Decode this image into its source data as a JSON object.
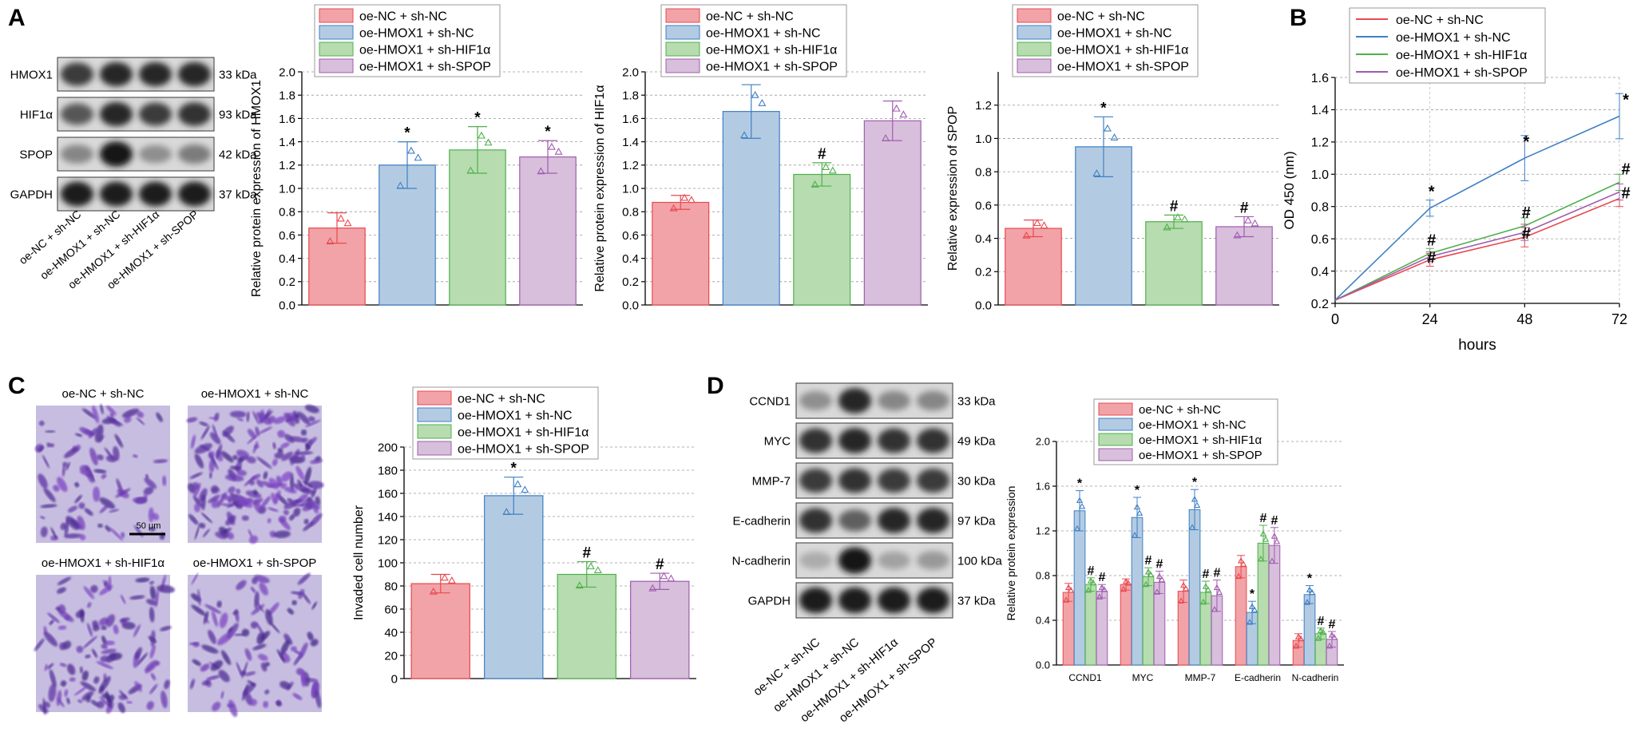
{
  "panel_letters": [
    "A",
    "B",
    "C",
    "D"
  ],
  "groups": [
    "oe-NC + sh-NC",
    "oe-HMOX1 + sh-NC",
    "oe-HMOX1 + sh-HIF1α",
    "oe-HMOX1 + sh-SPOP"
  ],
  "colors": {
    "fill": [
      "#f2a3a7",
      "#b3cbe2",
      "#b7dcb0",
      "#d8bfdc"
    ],
    "stroke": [
      "#e8494f",
      "#3e7fc4",
      "#4fb04b",
      "#a05cae"
    ]
  },
  "blot_a": {
    "rows": [
      {
        "label": "HMOX1",
        "kda": "33 kDa"
      },
      {
        "label": "HIF1α",
        "kda": "93 kDa"
      },
      {
        "label": "SPOP",
        "kda": "42 kDa"
      },
      {
        "label": "GAPDH",
        "kda": "37 kDa"
      }
    ]
  },
  "blot_d": {
    "rows": [
      {
        "label": "CCND1",
        "kda": "33 kDa"
      },
      {
        "label": "MYC",
        "kda": "49 kDa"
      },
      {
        "label": "MMP-7",
        "kda": "30 kDa"
      },
      {
        "label": "E-cadherin",
        "kda": "97 kDa"
      },
      {
        "label": "N-cadherin",
        "kda": "100 kDa"
      },
      {
        "label": "GAPDH",
        "kda": "37 kDa"
      }
    ]
  },
  "micrographs": {
    "labels": [
      "oe-NC + sh-NC",
      "oe-HMOX1 + sh-NC",
      "oe-HMOX1 + sh-HIF1α",
      "oe-HMOX1 + sh-SPOP"
    ],
    "scale_bar": "50 μm"
  },
  "chart_data": [
    {
      "id": "hmox1",
      "type": "bar",
      "categories": [
        "oe-NC + sh-NC",
        "oe-HMOX1 + sh-NC",
        "oe-HMOX1 + sh-HIF1α",
        "oe-HMOX1 + sh-SPOP"
      ],
      "values": [
        0.66,
        1.2,
        1.33,
        1.27
      ],
      "errors": [
        0.13,
        0.2,
        0.2,
        0.14
      ],
      "marks": [
        "",
        "*",
        "*",
        "*"
      ],
      "ylabel": "Relative protein expression of HMOX1",
      "ylim": [
        0,
        2.0
      ],
      "yticks": [
        "0.0",
        "0.2",
        "0.4",
        "0.6",
        "0.8",
        "1.0",
        "1.2",
        "1.4",
        "1.6",
        "1.8",
        "2.0"
      ],
      "legend": "top",
      "grid": true
    },
    {
      "id": "hif1a",
      "type": "bar",
      "categories": [
        "oe-NC + sh-NC",
        "oe-HMOX1 + sh-NC",
        "oe-HMOX1 + sh-HIF1α",
        "oe-HMOX1 + sh-SPOP"
      ],
      "values": [
        0.88,
        1.66,
        1.12,
        1.58
      ],
      "errors": [
        0.06,
        0.23,
        0.1,
        0.17
      ],
      "marks": [
        "",
        "*",
        "#",
        ""
      ],
      "ylabel": "Relative protein expression of HIF1α",
      "ylim": [
        0,
        2.0
      ],
      "yticks": [
        "0.0",
        "0.2",
        "0.4",
        "0.6",
        "0.8",
        "1.0",
        "1.2",
        "1.4",
        "1.6",
        "1.8",
        "2.0"
      ],
      "legend": "top",
      "grid": true
    },
    {
      "id": "spop",
      "type": "bar",
      "categories": [
        "oe-NC + sh-NC",
        "oe-HMOX1 + sh-NC",
        "oe-HMOX1 + sh-HIF1α",
        "oe-HMOX1 + sh-SPOP"
      ],
      "values": [
        0.46,
        0.95,
        0.5,
        0.47
      ],
      "errors": [
        0.05,
        0.18,
        0.04,
        0.06
      ],
      "marks": [
        "",
        "*",
        "#",
        "#"
      ],
      "ylabel": "Relative expression of SPOP",
      "ylim": [
        0,
        1.4
      ],
      "yticks": [
        "0.0",
        "0.2",
        "0.4",
        "0.6",
        "0.8",
        "1.0",
        "1.2"
      ],
      "legend": "top",
      "grid": true
    },
    {
      "id": "od450",
      "type": "line",
      "x": [
        0,
        24,
        48,
        72
      ],
      "xticks": [
        "0",
        "24",
        "48",
        "72"
      ],
      "series": [
        {
          "name": "oe-NC + sh-NC",
          "values": [
            0.22,
            0.47,
            0.61,
            0.85
          ],
          "errors": [
            0,
            0.04,
            0.06,
            0.05
          ],
          "marks": [
            "",
            "",
            "",
            ""
          ]
        },
        {
          "name": "oe-HMOX1 + sh-NC",
          "values": [
            0.22,
            0.79,
            1.1,
            1.36
          ],
          "errors": [
            0,
            0.05,
            0.14,
            0.14
          ],
          "marks": [
            "",
            "*",
            "*",
            "*"
          ]
        },
        {
          "name": "oe-HMOX1 + sh-HIF1α",
          "values": [
            0.22,
            0.51,
            0.68,
            0.95
          ],
          "errors": [
            0,
            0.03,
            0.05,
            0.05
          ],
          "marks": [
            "",
            "#",
            "#",
            "#"
          ]
        },
        {
          "name": "oe-HMOX1 + sh-SPOP",
          "values": [
            0.22,
            0.49,
            0.64,
            0.89
          ],
          "errors": [
            0,
            0.03,
            0.05,
            0.05
          ],
          "marks": [
            "",
            "#",
            "#",
            "#"
          ]
        }
      ],
      "xlabel": "hours",
      "ylabel": "OD 450 (nm)",
      "ylim": [
        0.2,
        1.6
      ],
      "yticks": [
        "0.2",
        "0.4",
        "0.6",
        "0.8",
        "1.0",
        "1.2",
        "1.4",
        "1.6"
      ],
      "legend": "top-left",
      "grid": true
    },
    {
      "id": "invasion",
      "type": "bar",
      "categories": [
        "oe-NC + sh-NC",
        "oe-HMOX1 + sh-NC",
        "oe-HMOX1 + sh-HIF1α",
        "oe-HMOX1 + sh-SPOP"
      ],
      "values": [
        82,
        158,
        90,
        84
      ],
      "errors": [
        8,
        16,
        11,
        7
      ],
      "marks": [
        "",
        "*",
        "#",
        "#"
      ],
      "ylabel": "Invaded cell number",
      "ylim": [
        0,
        200
      ],
      "yticks": [
        "0",
        "20",
        "40",
        "60",
        "80",
        "100",
        "120",
        "140",
        "160",
        "180",
        "200"
      ],
      "legend": "top",
      "grid": true
    },
    {
      "id": "emt",
      "type": "bar",
      "categories": [
        "CCND1",
        "MYC",
        "MMP-7",
        "E-cadherin",
        "N-cadherin"
      ],
      "series": [
        {
          "name": "oe-NC + sh-NC",
          "values": [
            0.65,
            0.72,
            0.66,
            0.88,
            0.22
          ],
          "errors": [
            0.08,
            0.05,
            0.1,
            0.1,
            0.06
          ],
          "marks": [
            "",
            "",
            "",
            "",
            ""
          ]
        },
        {
          "name": "oe-HMOX1 + sh-NC",
          "values": [
            1.38,
            1.32,
            1.39,
            0.47,
            0.63
          ],
          "errors": [
            0.18,
            0.18,
            0.18,
            0.1,
            0.08
          ],
          "marks": [
            "*",
            "*",
            "*",
            "*",
            "*"
          ]
        },
        {
          "name": "oe-HMOX1 + sh-HIF1α",
          "values": [
            0.72,
            0.79,
            0.65,
            1.09,
            0.28
          ],
          "errors": [
            0.06,
            0.08,
            0.1,
            0.16,
            0.05
          ],
          "marks": [
            "#",
            "#",
            "#",
            "#",
            "#"
          ]
        },
        {
          "name": "oe-HMOX1 + sh-SPOP",
          "values": [
            0.66,
            0.74,
            0.62,
            1.07,
            0.23
          ],
          "errors": [
            0.06,
            0.1,
            0.14,
            0.16,
            0.07
          ],
          "marks": [
            "#",
            "#",
            "#",
            "#",
            "#"
          ]
        }
      ],
      "ylabel": "Relative protein expression",
      "ylim": [
        0,
        2.0
      ],
      "yticks": [
        "0.0",
        "0.4",
        "0.8",
        "1.2",
        "1.6",
        "2.0"
      ],
      "legend": "top",
      "grid": true
    }
  ]
}
